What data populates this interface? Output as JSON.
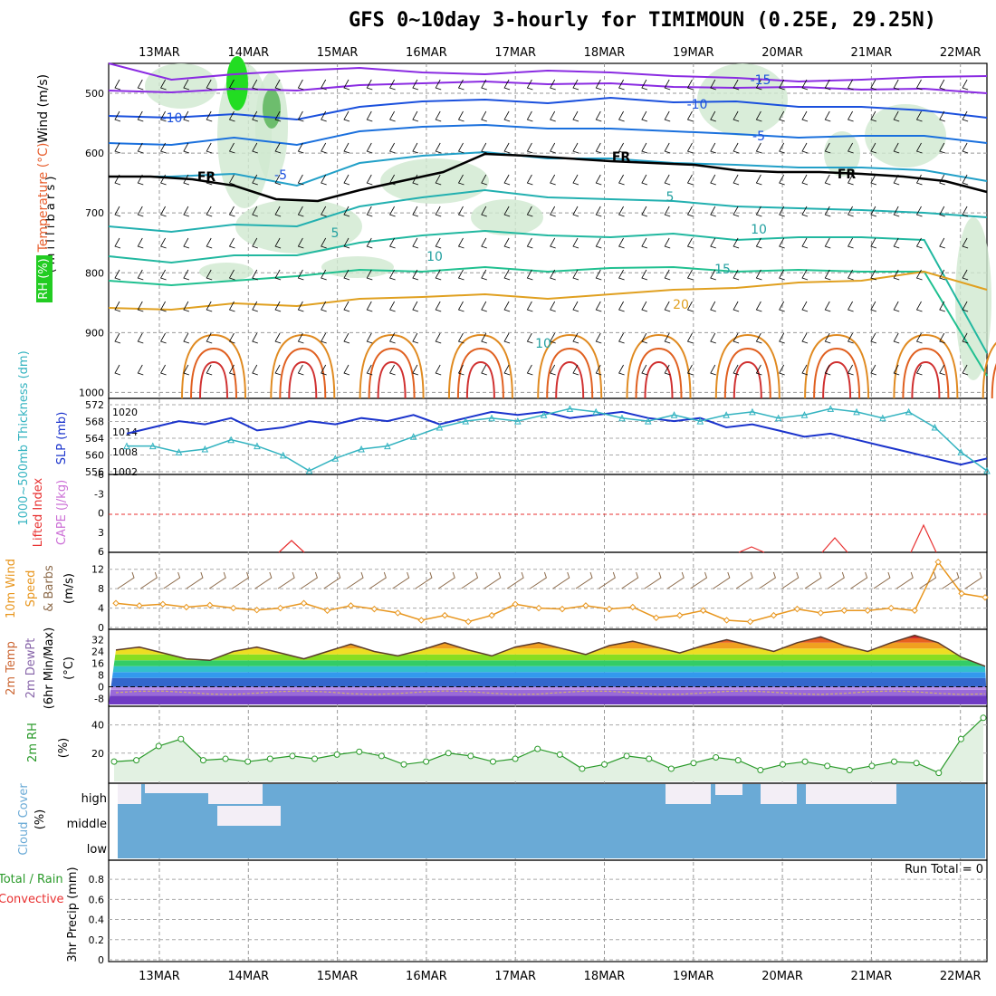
{
  "header": {
    "title": "GFS 0~10day 3-hourly for TIMIMOUN (0.25E, 29.25N)"
  },
  "dates": [
    "13MAR",
    "14MAR",
    "15MAR",
    "16MAR",
    "17MAR",
    "18MAR",
    "19MAR",
    "20MAR",
    "21MAR",
    "22MAR"
  ],
  "colors": {
    "slp": "#1a33cc",
    "thickness": "#33b3c0",
    "rh": "#2a9a2a",
    "wind": "#e8961e",
    "barb": "#8c6a4a",
    "cape": "#cc6fd6",
    "li": "#e83030",
    "cloud": "#6aaad6",
    "grid": "#888888"
  },
  "panels": {
    "upper": {
      "label_rh": "RH (%)",
      "label_temp": "Temperature (°C)",
      "label_wind": "Wind (m/s)",
      "label_units": "( m i l l i b a r s )",
      "yticks": [
        "500",
        "600",
        "700",
        "800",
        "900",
        "1000"
      ],
      "contour_labels": [
        "-15",
        "-10",
        "-10",
        "-5",
        "-5",
        "FR",
        "FR",
        "FR",
        "5",
        "5",
        "10",
        "10",
        "15",
        "20",
        "10"
      ]
    },
    "slp": {
      "label_thick": "1000~500mb Thickness (dm)",
      "label_slp": "SLP (mb)",
      "left_ticks": [
        "572",
        "568",
        "564",
        "560",
        "556"
      ],
      "right_ticks": [
        "1020",
        "1014",
        "1008",
        "1002"
      ]
    },
    "cape": {
      "label_li": "Lifted Index",
      "label_cape": "CAPE (J/kg)",
      "ticks": [
        "6",
        "3",
        "0",
        "-3",
        "-6"
      ]
    },
    "wind10": {
      "label_a": "10m Wind",
      "label_b": "Speed",
      "label_c": "& Barbs",
      "label_units": "(m/s)",
      "ticks": [
        "12",
        "8",
        "4",
        "0"
      ]
    },
    "temp2m": {
      "label_a": "2m Temp",
      "label_b": "2m DewPt",
      "label_c": "(6hr Min/Max)",
      "label_units": "(°C)",
      "ticks": [
        "32",
        "24",
        "16",
        "8",
        "0",
        "-8"
      ]
    },
    "rh2m": {
      "label": "2m RH",
      "label_units": "(%)",
      "ticks": [
        "40",
        "20"
      ]
    },
    "cloud": {
      "label": "Cloud Cover",
      "label_units": "(%)",
      "levels": [
        "high",
        "middle",
        "low"
      ]
    },
    "precip": {
      "label_a": "Total / Rain",
      "label_b": "Convective",
      "label_c": "3hr Precip (mm)",
      "ticks": [
        "0.8",
        "0.6",
        "0.4",
        "0.2",
        "0"
      ],
      "run_total": "Run Total = 0"
    }
  },
  "chart_data": [
    {
      "type": "line",
      "title": "2m RH",
      "ylabel": "(%)",
      "ylim": [
        0,
        50
      ],
      "x": [
        "13MAR 00",
        "13MAR 06",
        "13MAR 12",
        "13MAR 18",
        "14MAR 00",
        "14MAR 06",
        "14MAR 12",
        "14MAR 18",
        "15MAR 00",
        "15MAR 06",
        "15MAR 12",
        "15MAR 18",
        "16MAR 00",
        "16MAR 06",
        "16MAR 12",
        "16MAR 18",
        "17MAR 00",
        "17MAR 06",
        "17MAR 12",
        "17MAR 18",
        "18MAR 00",
        "18MAR 06",
        "18MAR 12",
        "18MAR 18",
        "19MAR 00",
        "19MAR 06",
        "19MAR 12",
        "19MAR 18",
        "20MAR 00",
        "20MAR 06",
        "20MAR 12",
        "20MAR 18",
        "21MAR 00",
        "21MAR 06",
        "21MAR 12",
        "21MAR 18",
        "22MAR 00",
        "22MAR 06"
      ],
      "series": [
        {
          "name": "2m RH",
          "values": [
            14,
            15,
            25,
            30,
            15,
            16,
            14,
            16,
            18,
            16,
            19,
            21,
            18,
            12,
            14,
            20,
            18,
            14,
            16,
            23,
            19,
            9,
            12,
            18,
            16,
            9,
            13,
            17,
            15,
            8,
            12,
            14,
            11,
            8,
            11,
            14,
            13,
            6
          ]
        }
      ]
    },
    {
      "type": "line",
      "title": "SLP (mb)",
      "ylim": [
        1002,
        1023
      ],
      "series": [
        {
          "name": "SLP",
          "values": [
            1014,
            1016,
            1018,
            1017,
            1019,
            1015,
            1016,
            1018,
            1017,
            1019,
            1018,
            1020,
            1017,
            1019,
            1021,
            1020,
            1021,
            1019,
            1020,
            1021,
            1019,
            1018,
            1019,
            1016,
            1017,
            1015,
            1013,
            1014,
            1012,
            1010,
            1008,
            1006,
            1004,
            1006
          ]
        },
        {
          "name": "1000~500mb Thickness",
          "values": [
            1010,
            1010,
            1008,
            1009,
            1012,
            1010,
            1007,
            1002,
            1006,
            1009,
            1010,
            1013,
            1016,
            1018,
            1019,
            1018,
            1020,
            1022,
            1021,
            1019,
            1018,
            1020,
            1018,
            1020,
            1021,
            1019,
            1020,
            1022,
            1021,
            1019,
            1021,
            1016,
            1008,
            1002
          ]
        }
      ]
    },
    {
      "type": "line",
      "title": "10m Wind Speed",
      "ylabel": "(m/s)",
      "ylim": [
        0,
        14
      ],
      "series": [
        {
          "name": "10m Wind Speed",
          "values": [
            5,
            4.5,
            4.8,
            4.2,
            4.6,
            4.0,
            3.6,
            4.0,
            5.0,
            3.5,
            4.5,
            3.8,
            3.0,
            1.5,
            2.5,
            1.2,
            2.5,
            4.8,
            4.0,
            3.8,
            4.5,
            3.8,
            4.2,
            2.0,
            2.5,
            3.5,
            1.5,
            1.2,
            2.5,
            3.8,
            3.0,
            3.5,
            3.5,
            4.0,
            3.5,
            13.5,
            7.0,
            6.2
          ]
        }
      ]
    },
    {
      "type": "area",
      "title": "2m Temp",
      "ylabel": "(°C)",
      "ylim": [
        -12,
        36
      ],
      "series": [
        {
          "name": "2m Temp",
          "values": [
            25,
            27,
            23,
            19,
            18,
            24,
            27,
            23,
            19,
            24,
            29,
            24,
            21,
            25,
            30,
            25,
            21,
            27,
            30,
            26,
            22,
            28,
            31,
            27,
            23,
            28,
            32,
            28,
            24,
            30,
            34,
            28,
            24,
            30,
            35,
            30,
            20,
            14
          ]
        }
      ]
    }
  ]
}
